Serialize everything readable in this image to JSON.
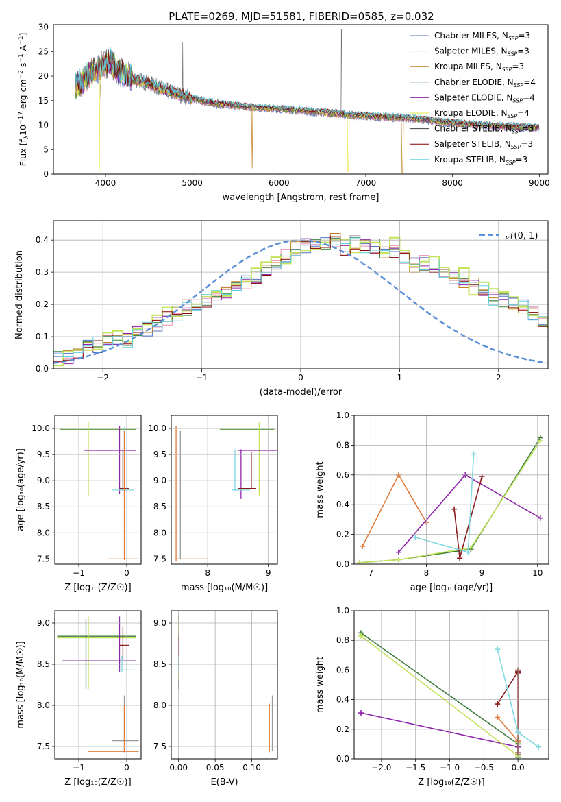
{
  "figure": {
    "title": "PLATE=0269, MJD=51581, FIBERID=0585, z=0.032",
    "colors": [
      "#5470c6",
      "#f090b0",
      "#c08020",
      "#3a8a3a",
      "#8e24aa",
      "#e8e840",
      "#404040",
      "#8b0000",
      "#60d0e0"
    ],
    "pop_colors": [
      "#3a7a3a",
      "#e07b39",
      "#9a9a9a",
      "#8e24aa",
      "#c2e35a",
      "#8b1a1a",
      "#80d8e0"
    ]
  },
  "chart_data": [
    {
      "id": "spectrum",
      "type": "line",
      "title": "PLATE=0269, MJD=51581, FIBERID=0585, z=0.032",
      "xlabel": "wavelength [Angstrom, rest frame]",
      "ylabel_parts": [
        "Flux [f",
        "λ",
        "10",
        "−17",
        " erg cm",
        "−2",
        " s",
        "−1",
        " A",
        "−1",
        "]"
      ],
      "xlim": [
        3400,
        9100
      ],
      "ylim": [
        0,
        30.5
      ],
      "xticks": [
        "4000",
        "5000",
        "6000",
        "7000",
        "8000",
        "9000"
      ],
      "yticks": [
        "0",
        "5",
        "10",
        "15",
        "20",
        "25",
        "30"
      ],
      "legend_position": "top-right",
      "legend": [
        {
          "name": "Chabrier MILES",
          "nssp": "3"
        },
        {
          "name": "Salpeter MILES",
          "nssp": "3"
        },
        {
          "name": "Kroupa MILES",
          "nssp": "3"
        },
        {
          "name": "Chabrier ELODIE",
          "nssp": "4"
        },
        {
          "name": "Salpeter ELODIE",
          "nssp": "4"
        },
        {
          "name": "Kroupa ELODIE",
          "nssp": "4"
        },
        {
          "name": "Chabrier STELIB",
          "nssp": "3"
        },
        {
          "name": "Salpeter STELIB",
          "nssp": "3"
        },
        {
          "name": "Kroupa STELIB",
          "nssp": "3"
        }
      ],
      "continuum": {
        "x": [
          3650,
          3750,
          3850,
          3950,
          4050,
          4150,
          4300,
          4500,
          4700,
          4900,
          5100,
          5300,
          5500,
          5700,
          5900,
          6100,
          6300,
          6500,
          6700,
          6900,
          7100,
          7300,
          7500,
          7700,
          7900,
          8100,
          8300,
          8500,
          8700,
          8900
        ],
        "y": [
          18,
          19,
          21,
          22,
          23,
          21,
          19.5,
          18.5,
          17,
          16,
          15,
          14.3,
          14,
          13.6,
          13.4,
          13.2,
          12.9,
          12.6,
          12.3,
          12,
          11.8,
          11.6,
          11.4,
          11.1,
          10.6,
          10.3,
          10,
          9.8,
          9.7,
          9.5
        ]
      },
      "model_dips": [
        {
          "x": 3930,
          "y": 0.5,
          "series": 5
        },
        {
          "x": 5690,
          "y": 1.2,
          "series": 2
        },
        {
          "x": 6800,
          "y": 0.5,
          "series": 5
        },
        {
          "x": 7420,
          "y": 0.3,
          "series": 2
        }
      ],
      "data_spikes": [
        {
          "x": 4890,
          "y": 27
        },
        {
          "x": 6720,
          "y": 29.5
        }
      ]
    },
    {
      "id": "residuals",
      "type": "area",
      "xlabel": "(data-model)/error",
      "ylabel": "Normed distribution",
      "xlim": [
        -2.5,
        2.5
      ],
      "ylim": [
        0,
        0.46
      ],
      "xticks": [
        "−2",
        "−1",
        "0",
        "1",
        "2"
      ],
      "yticks": [
        "0.0",
        "0.1",
        "0.2",
        "0.3",
        "0.4"
      ],
      "legend_position": "top-right",
      "grid": true,
      "gaussian_label": "𝒩(0, 1)",
      "bin_width": 0.1,
      "bins_start": -2.5,
      "base_hist": [
        0.03,
        0.04,
        0.055,
        0.07,
        0.075,
        0.08,
        0.1,
        0.09,
        0.11,
        0.12,
        0.135,
        0.16,
        0.17,
        0.19,
        0.2,
        0.21,
        0.22,
        0.23,
        0.25,
        0.27,
        0.29,
        0.31,
        0.33,
        0.35,
        0.37,
        0.38,
        0.38,
        0.39,
        0.4,
        0.37,
        0.39,
        0.38,
        0.38,
        0.36,
        0.37,
        0.35,
        0.32,
        0.33,
        0.32,
        0.3,
        0.28,
        0.27,
        0.26,
        0.24,
        0.22,
        0.21,
        0.2,
        0.19,
        0.17,
        0.15,
        0.13,
        0.12,
        0.11,
        0.1,
        0.09,
        0.085,
        0.08,
        0.08,
        0.075,
        0.07,
        0.065,
        0.06,
        0.055,
        0.05,
        0.045,
        0.04,
        0.035,
        0.03,
        0.025,
        0.02
      ],
      "hist_colors": [
        0,
        1,
        2,
        3,
        4,
        5,
        7,
        8
      ]
    },
    {
      "id": "age-vs-Z",
      "type": "scatter",
      "xlabel": "Z [log₁₀(Z/Z☉)]",
      "ylabel": "age  [log₁₀(age/yr)]",
      "xlim": [
        -1.5,
        0.3
      ],
      "ylim": [
        7.4,
        10.25
      ],
      "xticks": [
        "−1",
        "0"
      ],
      "yticks": [
        "7.5",
        "8.0",
        "8.5",
        "9.0",
        "9.5",
        "10.0"
      ],
      "grid": true
    },
    {
      "id": "age-vs-mass",
      "type": "scatter",
      "xlabel": "mass [log₁₀(M/M☉)]",
      "ylabel": "",
      "xlim": [
        7.4,
        9.15
      ],
      "ylim": [
        7.4,
        10.25
      ],
      "xticks": [
        "8",
        "9"
      ],
      "yticks": [
        "7.5",
        "8.0",
        "8.5",
        "9.0",
        "9.5",
        "10.0"
      ],
      "grid": true
    },
    {
      "id": "weight-vs-age",
      "type": "line",
      "xlabel": "age  [log₁₀(age/yr)]",
      "ylabel": "mass weight",
      "xlim": [
        6.7,
        10.2
      ],
      "ylim": [
        0,
        1.0
      ],
      "xticks": [
        "7",
        "8",
        "9",
        "10"
      ],
      "yticks": [
        "0.0",
        "0.2",
        "0.4",
        "0.6",
        "0.8",
        "1.0"
      ],
      "grid": true,
      "series": [
        {
          "color": 0,
          "x": [
            6.8,
            7.5,
            8.8,
            10.05
          ],
          "y": [
            0.01,
            0.03,
            0.1,
            0.85
          ]
        },
        {
          "color": 1,
          "x": [
            6.85,
            7.5,
            8.0
          ],
          "y": [
            0.12,
            0.6,
            0.28
          ]
        },
        {
          "color": 3,
          "x": [
            7.5,
            8.7,
            10.05
          ],
          "y": [
            0.08,
            0.6,
            0.31
          ]
        },
        {
          "color": 4,
          "x": [
            6.8,
            7.5,
            8.8,
            10.05
          ],
          "y": [
            0.01,
            0.03,
            0.11,
            0.83
          ]
        },
        {
          "color": 5,
          "x": [
            8.5,
            8.6,
            9.0
          ],
          "y": [
            0.37,
            0.04,
            0.59
          ]
        },
        {
          "color": 6,
          "x": [
            7.8,
            8.75,
            8.85
          ],
          "y": [
            0.18,
            0.08,
            0.74
          ]
        }
      ]
    },
    {
      "id": "mass-vs-Z",
      "type": "scatter",
      "xlabel": "Z [log₁₀(Z/Z☉)]",
      "ylabel": "mass [log₁₀(M/M☉)]",
      "xlim": [
        -1.5,
        0.3
      ],
      "ylim": [
        7.35,
        9.15
      ],
      "xticks": [
        "−1",
        "0"
      ],
      "yticks": [
        "7.5",
        "8.0",
        "8.5",
        "9.0"
      ],
      "grid": true
    },
    {
      "id": "mass-vs-ebv",
      "type": "scatter",
      "xlabel": "E(B-V)",
      "ylabel": "",
      "xlim": [
        -0.01,
        0.135
      ],
      "ylim": [
        7.35,
        9.15
      ],
      "xticks": [
        "0.00",
        "0.05",
        "0.10"
      ],
      "yticks": [
        "7.5",
        "8.0",
        "8.5",
        "9.0"
      ],
      "grid": true
    },
    {
      "id": "weight-vs-Z",
      "type": "line",
      "xlabel": "Z [log₁₀(Z/Z☉)]",
      "ylabel": "mass weight",
      "xlim": [
        -2.4,
        0.45
      ],
      "ylim": [
        0,
        1.0
      ],
      "xticks": [
        "−2.0",
        "−1.5",
        "−1.0",
        "−0.5",
        "0.0"
      ],
      "yticks": [
        "0.0",
        "0.2",
        "0.4",
        "0.6",
        "0.8",
        "1.0"
      ],
      "grid": true,
      "series": [
        {
          "color": 0,
          "x": [
            -2.3,
            0.0,
            0.0
          ],
          "y": [
            0.85,
            0.1,
            0.01
          ]
        },
        {
          "color": 1,
          "x": [
            -0.3,
            0.0,
            0.0
          ],
          "y": [
            0.28,
            0.12,
            0.6
          ]
        },
        {
          "color": 2,
          "x": [
            0.0,
            0.0
          ],
          "y": [
            0.6,
            0.03
          ]
        },
        {
          "color": 3,
          "x": [
            -2.3,
            0.0
          ],
          "y": [
            0.31,
            0.08
          ]
        },
        {
          "color": 4,
          "x": [
            -2.3,
            0.0,
            0.0
          ],
          "y": [
            0.83,
            0.02,
            0.11
          ]
        },
        {
          "color": 5,
          "x": [
            -0.3,
            0.0,
            0.0,
            0.0
          ],
          "y": [
            0.37,
            0.59,
            0.04,
            0.58
          ]
        },
        {
          "color": 6,
          "x": [
            -0.3,
            0.0,
            0.3
          ],
          "y": [
            0.74,
            0.18,
            0.08
          ]
        }
      ]
    }
  ],
  "errorbar_sets": {
    "age-vs-Z": [
      {
        "color": 0,
        "x": -1.4,
        "x2": 0.2,
        "y": 9.98,
        "y1": 9.98,
        "y2": 9.98
      },
      {
        "color": 4,
        "x": -1.4,
        "x2": 0.2,
        "y": 9.97,
        "y1": 9.97,
        "y2": 9.97
      },
      {
        "color": 4,
        "x": -0.8,
        "x2": -0.8,
        "y": 9.97,
        "y1": 8.72,
        "y2": 10.12
      },
      {
        "color": 3,
        "x": -0.9,
        "x2": 0.2,
        "y": 9.58,
        "y1": 9.58,
        "y2": 9.58
      },
      {
        "color": 3,
        "x": -0.15,
        "x2": -0.15,
        "y": 9.58,
        "y1": 8.75,
        "y2": 10.05
      },
      {
        "color": 5,
        "x": -0.15,
        "x2": 0.05,
        "y": 8.85,
        "y1": 8.85,
        "y2": 8.85
      },
      {
        "color": 5,
        "x": -0.08,
        "x2": -0.08,
        "y": 8.85,
        "y1": 8.8,
        "y2": 9.6
      },
      {
        "color": 6,
        "x": -0.3,
        "x2": 0.15,
        "y": 8.82,
        "y1": 8.82,
        "y2": 8.82
      },
      {
        "color": 6,
        "x": -0.05,
        "x2": -0.05,
        "y": 8.82,
        "y1": 8.8,
        "y2": 10.02
      },
      {
        "color": 1,
        "x": -0.4,
        "x2": 0.25,
        "y": 7.5,
        "y1": 7.5,
        "y2": 7.5
      },
      {
        "color": 1,
        "x": -0.05,
        "x2": -0.05,
        "y": 7.5,
        "y1": 7.48,
        "y2": 9.95
      }
    ],
    "age-vs-mass": [
      {
        "color": 0,
        "x": 8.2,
        "x2": 9.1,
        "y": 9.98,
        "y1": 9.98,
        "y2": 9.98
      },
      {
        "color": 4,
        "x": 8.2,
        "x2": 9.1,
        "y": 9.97,
        "y1": 9.97,
        "y2": 9.97
      },
      {
        "color": 4,
        "x": 8.85,
        "x2": 8.85,
        "y": 9.97,
        "y1": 8.72,
        "y2": 10.12
      },
      {
        "color": 3,
        "x": 8.5,
        "x2": 9.15,
        "y": 9.58,
        "y1": 9.58,
        "y2": 9.58
      },
      {
        "color": 3,
        "x": 8.55,
        "x2": 8.55,
        "y": 9.58,
        "y1": 8.65,
        "y2": 9.6
      },
      {
        "color": 5,
        "x": 8.5,
        "x2": 8.8,
        "y": 8.85,
        "y1": 8.85,
        "y2": 8.85
      },
      {
        "color": 5,
        "x": 8.72,
        "x2": 8.72,
        "y": 8.85,
        "y1": 8.85,
        "y2": 9.55
      },
      {
        "color": 6,
        "x": 8.4,
        "x2": 8.7,
        "y": 8.82,
        "y1": 8.82,
        "y2": 8.82
      },
      {
        "color": 6,
        "x": 8.45,
        "x2": 8.45,
        "y": 8.82,
        "y1": 8.8,
        "y2": 9.6
      },
      {
        "color": 1,
        "x": 7.45,
        "x2": 8.0,
        "y": 7.5,
        "y1": 7.5,
        "y2": 7.5
      },
      {
        "color": 1,
        "x": 7.48,
        "x2": 7.48,
        "y": 7.5,
        "y1": 7.45,
        "y2": 10.05
      },
      {
        "color": 2,
        "x": 7.55,
        "x2": 7.55,
        "y": 7.5,
        "y1": 7.5,
        "y2": 9.95
      }
    ],
    "mass-vs-Z": [
      {
        "color": 0,
        "x": -1.45,
        "x2": 0.2,
        "y": 8.84,
        "y1": 8.84,
        "y2": 8.84
      },
      {
        "color": 4,
        "x": -1.45,
        "x2": 0.2,
        "y": 8.82,
        "y1": 8.82,
        "y2": 8.82
      },
      {
        "color": 4,
        "x": -0.8,
        "x2": -0.8,
        "y": 8.82,
        "y1": 8.2,
        "y2": 9.08
      },
      {
        "color": 0,
        "x": -0.85,
        "x2": -0.85,
        "y": 8.84,
        "y1": 8.2,
        "y2": 9.05
      },
      {
        "color": 3,
        "x": -1.35,
        "x2": 0.2,
        "y": 8.54,
        "y1": 8.54,
        "y2": 8.54
      },
      {
        "color": 3,
        "x": -0.15,
        "x2": -0.15,
        "y": 8.54,
        "y1": 8.4,
        "y2": 9.08
      },
      {
        "color": 5,
        "x": -0.15,
        "x2": 0.05,
        "y": 8.73,
        "y1": 8.73,
        "y2": 8.73
      },
      {
        "color": 5,
        "x": -0.08,
        "x2": -0.08,
        "y": 8.73,
        "y1": 8.55,
        "y2": 8.95
      },
      {
        "color": 6,
        "x": -0.2,
        "x2": 0.15,
        "y": 8.43,
        "y1": 8.43,
        "y2": 8.43
      },
      {
        "color": 6,
        "x": -0.1,
        "x2": -0.1,
        "y": 8.43,
        "y1": 8.4,
        "y2": 8.6
      },
      {
        "color": 2,
        "x": -0.3,
        "x2": 0.25,
        "y": 7.57,
        "y1": 7.57,
        "y2": 7.57
      },
      {
        "color": 2,
        "x": -0.05,
        "x2": -0.05,
        "y": 7.57,
        "y1": 7.45,
        "y2": 8.12
      },
      {
        "color": 1,
        "x": -0.8,
        "x2": 0.25,
        "y": 7.44,
        "y1": 7.44,
        "y2": 7.44
      },
      {
        "color": 1,
        "x": -0.05,
        "x2": -0.05,
        "y": 7.44,
        "y1": 7.43,
        "y2": 8.0
      }
    ],
    "mass-vs-ebv": [
      {
        "color": 0,
        "x": 0.0,
        "x2": 0.0,
        "y": 8.84,
        "y1": 8.2,
        "y2": 9.08
      },
      {
        "color": 4,
        "x": 0.0,
        "x2": 0.0,
        "y": 8.82,
        "y1": 8.3,
        "y2": 9.05
      },
      {
        "color": 5,
        "x": 0.0,
        "x2": 0.0,
        "y": 8.73,
        "y1": 8.5,
        "y2": 8.85
      },
      {
        "color": 6,
        "x": 0.0,
        "x2": 0.0,
        "y": 8.43,
        "y1": 8.4,
        "y2": 8.6
      },
      {
        "color": 2,
        "x": 0.128,
        "x2": 0.128,
        "y": 7.6,
        "y1": 7.45,
        "y2": 8.12
      },
      {
        "color": 1,
        "x": 0.124,
        "x2": 0.124,
        "y": 7.55,
        "y1": 7.43,
        "y2": 8.02
      }
    ]
  }
}
